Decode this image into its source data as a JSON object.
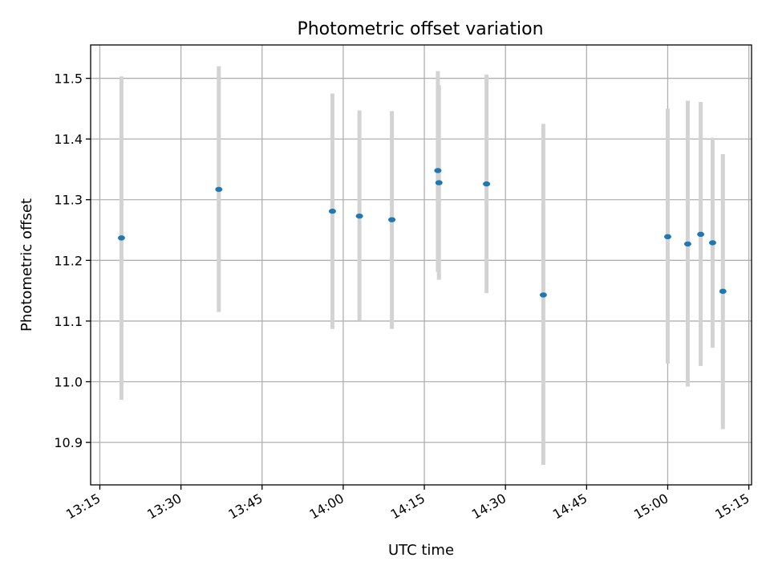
{
  "chart_data": {
    "type": "scatter",
    "title": "Photometric offset variation",
    "xlabel": "UTC time",
    "ylabel": "Photometric offset",
    "x_ticks": [
      "13:15",
      "13:30",
      "13:45",
      "14:00",
      "14:15",
      "14:30",
      "14:45",
      "15:00",
      "15:15"
    ],
    "y_ticks": [
      "10.9",
      "11.0",
      "11.1",
      "11.2",
      "11.3",
      "11.4",
      "11.5"
    ],
    "x_range_minutes": [
      "13:13.3",
      "15:15.5"
    ],
    "ylim": [
      10.83,
      11.555
    ],
    "grid": true,
    "colors": {
      "point": "#1f77b4",
      "errorbar": "#d3d3d3",
      "grid": "#b0b0b0"
    },
    "points": [
      {
        "time": "13:19",
        "y": 11.237,
        "ylow": 10.97,
        "yhigh": 11.503
      },
      {
        "time": "13:37",
        "y": 11.317,
        "ylow": 11.115,
        "yhigh": 11.52
      },
      {
        "time": "13:58",
        "y": 11.281,
        "ylow": 11.087,
        "yhigh": 11.475
      },
      {
        "time": "14:03",
        "y": 11.273,
        "ylow": 11.101,
        "yhigh": 11.447
      },
      {
        "time": "14:09",
        "y": 11.267,
        "ylow": 11.087,
        "yhigh": 11.446
      },
      {
        "time": "14:17.5",
        "y": 11.348,
        "ylow": 11.181,
        "yhigh": 11.512
      },
      {
        "time": "14:17.7",
        "y": 11.328,
        "ylow": 11.168,
        "yhigh": 11.489
      },
      {
        "time": "14:26.5",
        "y": 11.326,
        "ylow": 11.146,
        "yhigh": 11.506
      },
      {
        "time": "14:37",
        "y": 11.143,
        "ylow": 10.863,
        "yhigh": 11.425
      },
      {
        "time": "15:00",
        "y": 11.239,
        "ylow": 11.03,
        "yhigh": 11.45
      },
      {
        "time": "15:03.7",
        "y": 11.227,
        "ylow": 10.992,
        "yhigh": 11.463
      },
      {
        "time": "15:06.1",
        "y": 11.243,
        "ylow": 11.026,
        "yhigh": 11.461
      },
      {
        "time": "15:08.3",
        "y": 11.229,
        "ylow": 11.056,
        "yhigh": 11.402
      },
      {
        "time": "15:10.2",
        "y": 11.149,
        "ylow": 10.922,
        "yhigh": 11.375
      }
    ]
  }
}
